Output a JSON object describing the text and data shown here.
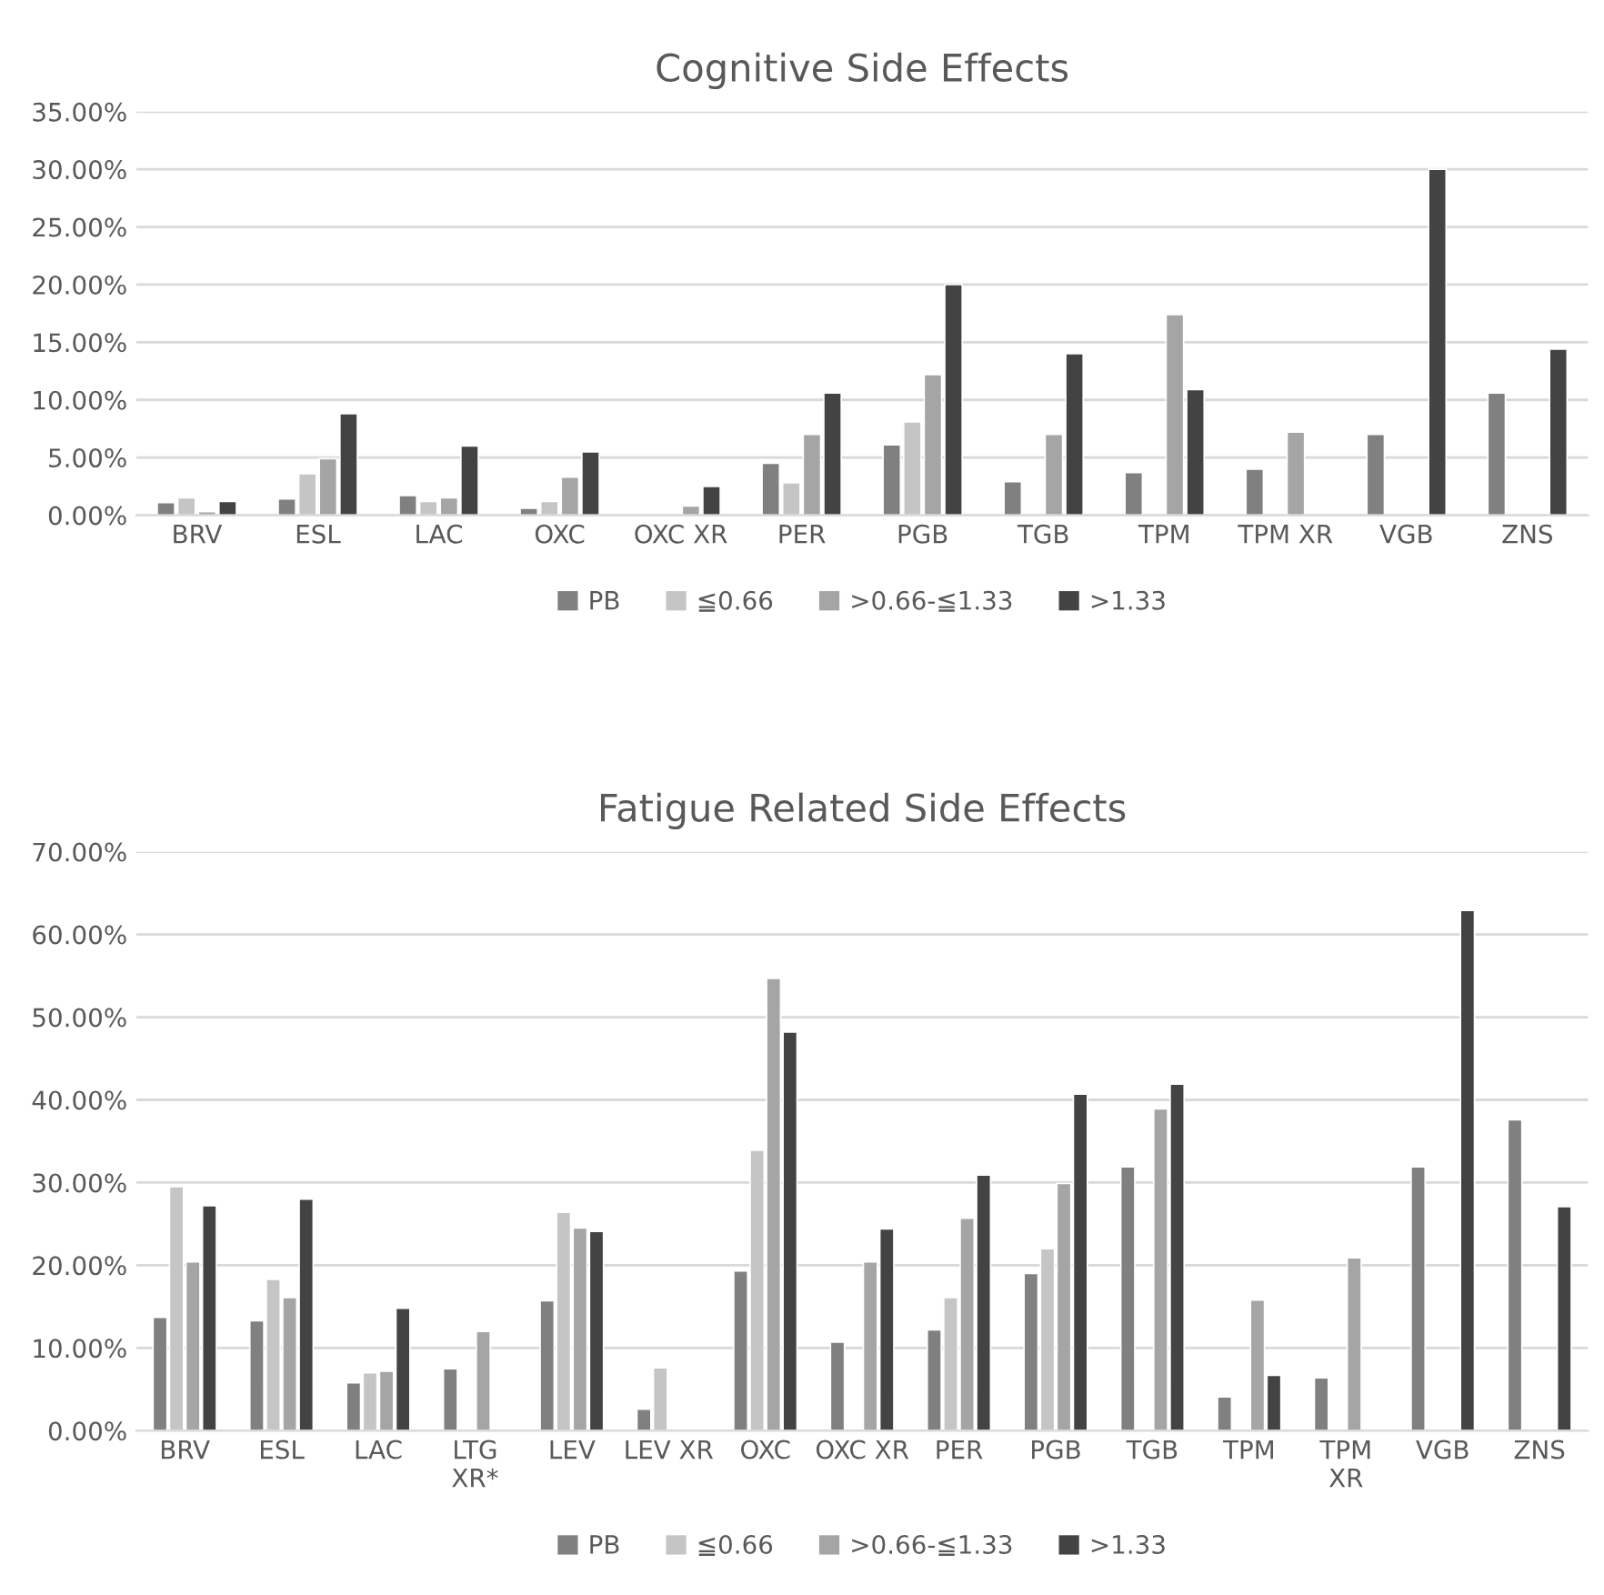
{
  "chart_data": [
    {
      "type": "bar",
      "title": "Cognitive Side Effects",
      "categories": [
        "BRV",
        "ESL",
        "LAC",
        "OXC",
        "OXC XR",
        "PER",
        "PGB",
        "TGB",
        "TPM",
        "TPM XR",
        "VGB",
        "ZNS"
      ],
      "series": [
        {
          "name": "PB",
          "color": "#808080",
          "values": [
            1.1,
            1.4,
            1.7,
            0.6,
            null,
            4.5,
            6.1,
            2.9,
            3.7,
            4.0,
            7.0,
            10.6
          ]
        },
        {
          "name": "≦0.66",
          "color": "#c5c5c5",
          "values": [
            1.5,
            3.6,
            1.2,
            1.2,
            null,
            2.8,
            8.1,
            null,
            null,
            null,
            null,
            null
          ]
        },
        {
          "name": ">0.66-≦1.33",
          "color": "#a5a5a5",
          "values": [
            0.3,
            4.9,
            1.5,
            3.3,
            0.8,
            7.0,
            12.2,
            7.0,
            17.4,
            7.2,
            null,
            null
          ]
        },
        {
          "name": ">1.33",
          "color": "#434343",
          "values": [
            1.2,
            8.8,
            6.0,
            5.5,
            2.5,
            10.6,
            20.0,
            14.0,
            10.9,
            null,
            30.0,
            14.4
          ]
        }
      ],
      "ylim": [
        0,
        35
      ],
      "yticks": [
        {
          "value": 0,
          "label": "0.00%"
        },
        {
          "value": 5,
          "label": "5.00%"
        },
        {
          "value": 10,
          "label": "10.00%"
        },
        {
          "value": 15,
          "label": "15.00%"
        },
        {
          "value": 20,
          "label": "20.00%"
        },
        {
          "value": 25,
          "label": "25.00%"
        },
        {
          "value": 30,
          "label": "30.00%"
        },
        {
          "value": 35,
          "label": "35.00%"
        }
      ],
      "grid": "y",
      "legend": "bottom"
    },
    {
      "type": "bar",
      "title": "Fatigue Related Side Effects",
      "categories": [
        "BRV",
        "ESL",
        "LAC",
        "LTG\nXR*",
        "LEV",
        "LEV XR",
        "OXC",
        "OXC XR",
        "PER",
        "PGB",
        "TGB",
        "TPM",
        "TPM\nXR",
        "VGB",
        "ZNS"
      ],
      "series": [
        {
          "name": "PB",
          "color": "#808080",
          "values": [
            13.7,
            13.3,
            5.8,
            7.5,
            15.7,
            2.6,
            19.3,
            10.7,
            12.2,
            19.0,
            31.9,
            4.1,
            6.4,
            31.9,
            37.6
          ]
        },
        {
          "name": "≦0.66",
          "color": "#c5c5c5",
          "values": [
            29.5,
            18.3,
            7.0,
            null,
            26.4,
            7.6,
            33.9,
            null,
            16.1,
            22.0,
            null,
            null,
            null,
            null,
            null
          ]
        },
        {
          "name": ">0.66-≦1.33",
          "color": "#a5a5a5",
          "values": [
            20.4,
            16.1,
            7.2,
            12.0,
            24.5,
            null,
            54.7,
            20.4,
            25.7,
            29.9,
            38.9,
            15.8,
            20.9,
            null,
            null
          ]
        },
        {
          "name": ">1.33",
          "color": "#434343",
          "values": [
            27.2,
            28.0,
            14.8,
            null,
            24.1,
            null,
            48.2,
            24.4,
            30.9,
            40.7,
            41.9,
            6.7,
            null,
            62.9,
            27.1
          ]
        }
      ],
      "ylim": [
        0,
        70
      ],
      "yticks": [
        {
          "value": 0,
          "label": "0.00%"
        },
        {
          "value": 10,
          "label": "10.00%"
        },
        {
          "value": 20,
          "label": "20.00%"
        },
        {
          "value": 30,
          "label": "30.00%"
        },
        {
          "value": 40,
          "label": "40.00%"
        },
        {
          "value": 50,
          "label": "50.00%"
        },
        {
          "value": 60,
          "label": "60.00%"
        },
        {
          "value": 70,
          "label": "70.00%"
        }
      ],
      "grid": "y",
      "legend": "bottom"
    }
  ]
}
